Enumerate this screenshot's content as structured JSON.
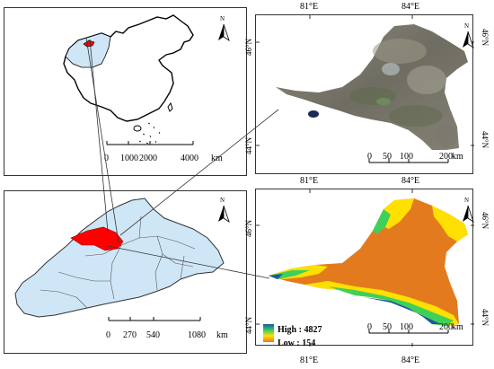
{
  "colors": {
    "highlight": "#ff0000",
    "region_fill": "#cfe6f7",
    "satellite_base": "#7c7a70",
    "dem_high": "#1b57a6",
    "dem_mid": "#3fd05a",
    "dem_upper_mid": "#ffe000",
    "dem_low": "#e47a1e",
    "leader_line": "#333333"
  },
  "icons": [
    "north-arrow-icon"
  ],
  "china_panel": {
    "north_label": "N",
    "scale_ticks": [
      "0",
      "1000",
      "2000",
      "4000"
    ],
    "scale_unit": "km"
  },
  "xinjiang_panel": {
    "north_label": "N",
    "scale_ticks": [
      "0",
      "270",
      "540",
      "1080"
    ],
    "scale_unit": "km"
  },
  "satellite_panel": {
    "north_label": "N",
    "lon_labels": [
      "81°E",
      "84°E"
    ],
    "lat_labels": [
      "46°N",
      "44°N"
    ],
    "scale_ticks": [
      "0",
      "50",
      "100",
      "200"
    ],
    "scale_unit": "km"
  },
  "dem_panel": {
    "north_label": "N",
    "lon_labels_top": [
      "81°E",
      "84°E"
    ],
    "lon_labels_bottom": [
      "81°E",
      "84°E"
    ],
    "lat_labels": [
      "46°N",
      "44°N"
    ],
    "scale_ticks": [
      "0",
      "50",
      "100",
      "200"
    ],
    "scale_unit": "km",
    "legend": {
      "high_label": "High : 4827",
      "low_label": "Low : 154"
    }
  }
}
